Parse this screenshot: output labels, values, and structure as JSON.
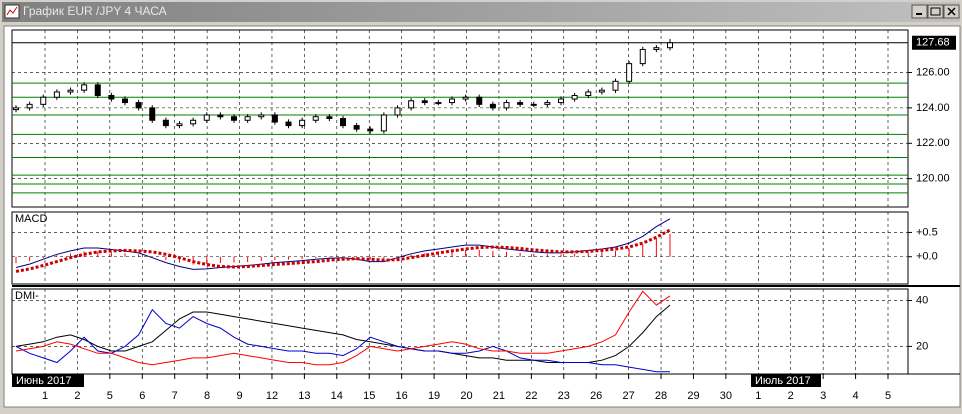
{
  "window": {
    "title": "График EUR /JPY  4 ЧАСА"
  },
  "x_axis": {
    "categories": [
      "1",
      "2",
      "5",
      "6",
      "7",
      "8",
      "9",
      "12",
      "13",
      "14",
      "15",
      "16",
      "19",
      "20",
      "21",
      "22",
      "23",
      "26",
      "27",
      "28",
      "29",
      "30",
      "1",
      "2",
      "3",
      "4",
      "5"
    ],
    "periods": [
      "Июнь 2017",
      "Июль 2017"
    ]
  },
  "chart_data": [
    {
      "type": "candlestick",
      "open": [
        123.9,
        124.0,
        124.2,
        124.6,
        124.9,
        125.0,
        125.3,
        124.7,
        124.5,
        124.3,
        124.0,
        123.3,
        123.0,
        123.1,
        123.3,
        123.6,
        123.5,
        123.3,
        123.5,
        123.6,
        123.2,
        123.0,
        123.3,
        123.5,
        123.4,
        123.0,
        122.8,
        122.7,
        123.6,
        124.0,
        124.4,
        124.3,
        124.3,
        124.5,
        124.6,
        124.2,
        124.0,
        124.3,
        124.2,
        124.2,
        124.3,
        124.5,
        124.7,
        124.9,
        125.0,
        125.5,
        126.5,
        127.3,
        127.4
      ],
      "high": [
        124.15,
        124.35,
        124.75,
        125.05,
        125.15,
        125.45,
        125.45,
        124.85,
        124.65,
        124.45,
        124.15,
        123.45,
        123.25,
        123.45,
        123.75,
        123.75,
        123.65,
        123.65,
        123.75,
        123.75,
        123.35,
        123.45,
        123.65,
        123.65,
        123.55,
        123.15,
        122.95,
        123.75,
        124.15,
        124.55,
        124.55,
        124.45,
        124.65,
        124.75,
        124.75,
        124.35,
        124.45,
        124.45,
        124.35,
        124.45,
        124.65,
        124.85,
        125.05,
        125.15,
        125.65,
        126.65,
        127.45,
        127.55,
        127.9
      ],
      "low": [
        123.75,
        123.85,
        124.05,
        124.45,
        124.75,
        124.85,
        124.55,
        124.35,
        124.15,
        123.85,
        123.15,
        122.85,
        122.85,
        122.95,
        123.15,
        123.35,
        123.15,
        123.15,
        123.35,
        123.05,
        122.85,
        122.85,
        123.15,
        123.25,
        122.85,
        122.65,
        122.55,
        122.55,
        123.45,
        123.85,
        124.15,
        124.15,
        124.15,
        124.35,
        124.05,
        123.85,
        123.85,
        124.05,
        124.05,
        124.05,
        124.15,
        124.35,
        124.55,
        124.75,
        124.85,
        125.35,
        126.35,
        127.15,
        127.25
      ],
      "close": [
        124.0,
        124.2,
        124.6,
        124.9,
        125.0,
        125.3,
        124.7,
        124.5,
        124.3,
        124.0,
        123.3,
        123.0,
        123.1,
        123.3,
        123.6,
        123.5,
        123.3,
        123.5,
        123.6,
        123.2,
        123.0,
        123.3,
        123.5,
        123.4,
        123.0,
        122.8,
        122.7,
        123.6,
        124.0,
        124.4,
        124.3,
        124.3,
        124.5,
        124.6,
        124.2,
        124.0,
        124.3,
        124.2,
        124.2,
        124.3,
        124.5,
        124.7,
        124.9,
        125.0,
        125.5,
        126.5,
        127.3,
        127.4,
        127.68
      ],
      "ylim": [
        118.4,
        128.4
      ],
      "yticks": [
        {
          "value": 120,
          "label": "120.00"
        },
        {
          "value": 122,
          "label": "122.00"
        },
        {
          "value": 124,
          "label": "124.00"
        },
        {
          "value": 126,
          "label": "126.00"
        }
      ],
      "last_price": 127.68,
      "levels": [
        125.4,
        124.6,
        123.6,
        122.5,
        121.2,
        120.2,
        119.7,
        119.2
      ],
      "level_color": "#008000",
      "grid": true
    },
    {
      "type": "line",
      "title": "MACD",
      "ylim": [
        -0.56,
        0.92
      ],
      "yticks": [
        {
          "value": 0,
          "label": "+0.0"
        },
        {
          "value": 0.5,
          "label": "+0.5"
        }
      ],
      "grid": true,
      "series": [
        {
          "color": "#ff0000",
          "bars": true,
          "values": [
            -0.13,
            -0.09,
            -0.03,
            0.03,
            0.07,
            0.11,
            0.11,
            0.09,
            0.07,
            0.05,
            -0.01,
            -0.07,
            -0.12,
            -0.16,
            -0.15,
            -0.13,
            -0.12,
            -0.11,
            -0.09,
            -0.07,
            -0.06,
            -0.05,
            -0.03,
            -0.02,
            -0.01,
            -0.03,
            -0.06,
            -0.06,
            -0.01,
            0.04,
            0.07,
            0.1,
            0.12,
            0.14,
            0.14,
            0.12,
            0.1,
            0.08,
            0.06,
            0.05,
            0.05,
            0.06,
            0.08,
            0.1,
            0.12,
            0.17,
            0.25,
            0.37,
            0.47
          ]
        },
        {
          "color": "#000080",
          "values": [
            -0.22,
            -0.15,
            -0.05,
            0.05,
            0.12,
            0.18,
            0.18,
            0.15,
            0.12,
            0.08,
            -0.02,
            -0.12,
            -0.2,
            -0.26,
            -0.25,
            -0.22,
            -0.2,
            -0.18,
            -0.15,
            -0.12,
            -0.1,
            -0.08,
            -0.05,
            -0.03,
            -0.02,
            -0.05,
            -0.1,
            -0.1,
            -0.02,
            0.06,
            0.12,
            0.16,
            0.2,
            0.24,
            0.24,
            0.2,
            0.16,
            0.13,
            0.1,
            0.08,
            0.08,
            0.1,
            0.13,
            0.16,
            0.2,
            0.28,
            0.42,
            0.62,
            0.78
          ]
        },
        {
          "color": "#cc0000",
          "dash": true,
          "values": [
            -0.3,
            -0.25,
            -0.18,
            -0.1,
            -0.02,
            0.05,
            0.1,
            0.12,
            0.13,
            0.12,
            0.1,
            0.05,
            -0.02,
            -0.1,
            -0.16,
            -0.2,
            -0.21,
            -0.2,
            -0.18,
            -0.16,
            -0.14,
            -0.12,
            -0.1,
            -0.07,
            -0.05,
            -0.04,
            -0.05,
            -0.07,
            -0.06,
            -0.02,
            0.03,
            0.08,
            0.12,
            0.16,
            0.19,
            0.2,
            0.19,
            0.17,
            0.14,
            0.12,
            0.1,
            0.1,
            0.11,
            0.13,
            0.16,
            0.2,
            0.28,
            0.4,
            0.55
          ]
        }
      ]
    },
    {
      "type": "line",
      "title": "DMI-",
      "ylim": [
        8,
        45
      ],
      "yticks": [
        20,
        40
      ],
      "grid": true,
      "series": [
        {
          "color": "#000000",
          "values": [
            20,
            21,
            22,
            24,
            25,
            23,
            20,
            18,
            18,
            20,
            22,
            27,
            32,
            35,
            35,
            34,
            33,
            32,
            31,
            30,
            29,
            28,
            27,
            26,
            25,
            23,
            22,
            21,
            20,
            19,
            18,
            18,
            17,
            16,
            15,
            15,
            14,
            14,
            14,
            13,
            13,
            13,
            13,
            14,
            16,
            20,
            26,
            33,
            38
          ]
        },
        {
          "color": "#0000cc",
          "values": [
            20,
            17,
            15,
            13,
            18,
            24,
            18,
            17,
            20,
            25,
            36,
            30,
            28,
            33,
            30,
            28,
            24,
            21,
            20,
            19,
            18,
            18,
            17,
            17,
            16,
            19,
            24,
            22,
            20,
            19,
            18,
            18,
            17,
            17,
            18,
            20,
            18,
            15,
            14,
            14,
            13,
            13,
            13,
            12,
            12,
            11,
            10,
            9,
            9
          ]
        },
        {
          "color": "#ff0000",
          "values": [
            18,
            19,
            20,
            22,
            21,
            19,
            17,
            17,
            15,
            13,
            12,
            13,
            14,
            15,
            15,
            16,
            17,
            16,
            15,
            14,
            13,
            13,
            12,
            12,
            13,
            16,
            20,
            19,
            18,
            19,
            20,
            21,
            22,
            21,
            19,
            18,
            18,
            17,
            17,
            17,
            18,
            19,
            20,
            22,
            25,
            35,
            44,
            38,
            42
          ]
        }
      ]
    }
  ]
}
